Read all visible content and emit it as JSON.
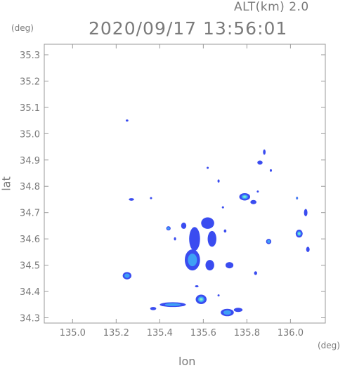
{
  "header": {
    "altitude_label": "ALT(km)  2.0",
    "timestamp": "2020/09/17 13:56:01"
  },
  "chart_data": {
    "type": "heatmap",
    "title": "2020/09/17 13:56:01",
    "subtitle": "ALT(km)  2.0",
    "xlabel": "lon",
    "ylabel": "lat",
    "x_unit": "(deg)",
    "y_unit": "(deg)",
    "xlim": [
      134.87,
      136.16
    ],
    "ylim": [
      34.28,
      35.34
    ],
    "x_ticks": [
      "135.0",
      "135.2",
      "135.4",
      "135.6",
      "135.8",
      "136.0"
    ],
    "y_ticks": [
      "34.3",
      "34.4",
      "34.5",
      "34.6",
      "34.7",
      "34.8",
      "34.9",
      "35.0",
      "35.1",
      "35.2",
      "35.3"
    ],
    "grid": false,
    "colors": {
      "low": "#3a4cf0",
      "mid": "#3fa0f5",
      "high": "#5ee0e0",
      "peak": "#9ef0b0",
      "frame": "#9a9a9a"
    },
    "echo_cells": [
      {
        "lon": 135.25,
        "lat": 35.05,
        "rx": 0.006,
        "ry": 0.004,
        "intensity": 1
      },
      {
        "lon": 135.88,
        "lat": 34.93,
        "rx": 0.006,
        "ry": 0.01,
        "intensity": 1
      },
      {
        "lon": 135.86,
        "lat": 34.89,
        "rx": 0.012,
        "ry": 0.008,
        "intensity": 1
      },
      {
        "lon": 135.62,
        "lat": 34.87,
        "rx": 0.004,
        "ry": 0.004,
        "intensity": 1
      },
      {
        "lon": 135.91,
        "lat": 34.86,
        "rx": 0.005,
        "ry": 0.005,
        "intensity": 1
      },
      {
        "lon": 135.67,
        "lat": 34.82,
        "rx": 0.004,
        "ry": 0.006,
        "intensity": 1
      },
      {
        "lon": 135.85,
        "lat": 34.78,
        "rx": 0.004,
        "ry": 0.004,
        "intensity": 1
      },
      {
        "lon": 135.79,
        "lat": 34.76,
        "rx": 0.025,
        "ry": 0.014,
        "intensity": 3
      },
      {
        "lon": 135.83,
        "lat": 34.74,
        "rx": 0.014,
        "ry": 0.008,
        "intensity": 1
      },
      {
        "lon": 135.27,
        "lat": 34.75,
        "rx": 0.012,
        "ry": 0.005,
        "intensity": 1
      },
      {
        "lon": 135.36,
        "lat": 34.755,
        "rx": 0.005,
        "ry": 0.004,
        "intensity": 1
      },
      {
        "lon": 135.69,
        "lat": 34.72,
        "rx": 0.005,
        "ry": 0.004,
        "intensity": 1
      },
      {
        "lon": 136.07,
        "lat": 34.7,
        "rx": 0.008,
        "ry": 0.014,
        "intensity": 1
      },
      {
        "lon": 136.03,
        "lat": 34.755,
        "rx": 0.004,
        "ry": 0.005,
        "intensity": 2
      },
      {
        "lon": 135.62,
        "lat": 34.66,
        "rx": 0.03,
        "ry": 0.022,
        "intensity": 1
      },
      {
        "lon": 135.51,
        "lat": 34.65,
        "rx": 0.012,
        "ry": 0.012,
        "intensity": 1
      },
      {
        "lon": 135.44,
        "lat": 34.64,
        "rx": 0.01,
        "ry": 0.008,
        "intensity": 2
      },
      {
        "lon": 135.56,
        "lat": 34.6,
        "rx": 0.025,
        "ry": 0.045,
        "intensity": 1
      },
      {
        "lon": 135.64,
        "lat": 34.6,
        "rx": 0.02,
        "ry": 0.03,
        "intensity": 1
      },
      {
        "lon": 135.7,
        "lat": 34.63,
        "rx": 0.006,
        "ry": 0.006,
        "intensity": 1
      },
      {
        "lon": 135.55,
        "lat": 34.52,
        "rx": 0.035,
        "ry": 0.04,
        "intensity": 2
      },
      {
        "lon": 135.63,
        "lat": 34.5,
        "rx": 0.02,
        "ry": 0.02,
        "intensity": 1
      },
      {
        "lon": 135.72,
        "lat": 34.5,
        "rx": 0.018,
        "ry": 0.012,
        "intensity": 1
      },
      {
        "lon": 135.47,
        "lat": 34.6,
        "rx": 0.005,
        "ry": 0.006,
        "intensity": 1
      },
      {
        "lon": 135.9,
        "lat": 34.59,
        "rx": 0.012,
        "ry": 0.01,
        "intensity": 2
      },
      {
        "lon": 136.04,
        "lat": 34.62,
        "rx": 0.016,
        "ry": 0.015,
        "intensity": 3
      },
      {
        "lon": 136.08,
        "lat": 34.56,
        "rx": 0.008,
        "ry": 0.01,
        "intensity": 1
      },
      {
        "lon": 135.84,
        "lat": 34.47,
        "rx": 0.007,
        "ry": 0.007,
        "intensity": 1
      },
      {
        "lon": 135.25,
        "lat": 34.46,
        "rx": 0.02,
        "ry": 0.014,
        "intensity": 2
      },
      {
        "lon": 135.57,
        "lat": 34.42,
        "rx": 0.008,
        "ry": 0.004,
        "intensity": 1
      },
      {
        "lon": 135.59,
        "lat": 34.37,
        "rx": 0.025,
        "ry": 0.018,
        "intensity": 3
      },
      {
        "lon": 135.46,
        "lat": 34.35,
        "rx": 0.06,
        "ry": 0.009,
        "intensity": 2
      },
      {
        "lon": 135.37,
        "lat": 34.335,
        "rx": 0.014,
        "ry": 0.006,
        "intensity": 1
      },
      {
        "lon": 135.71,
        "lat": 34.32,
        "rx": 0.03,
        "ry": 0.014,
        "intensity": 2
      },
      {
        "lon": 135.76,
        "lat": 34.33,
        "rx": 0.02,
        "ry": 0.008,
        "intensity": 1
      },
      {
        "lon": 135.67,
        "lat": 34.385,
        "rx": 0.004,
        "ry": 0.004,
        "intensity": 1
      }
    ]
  }
}
